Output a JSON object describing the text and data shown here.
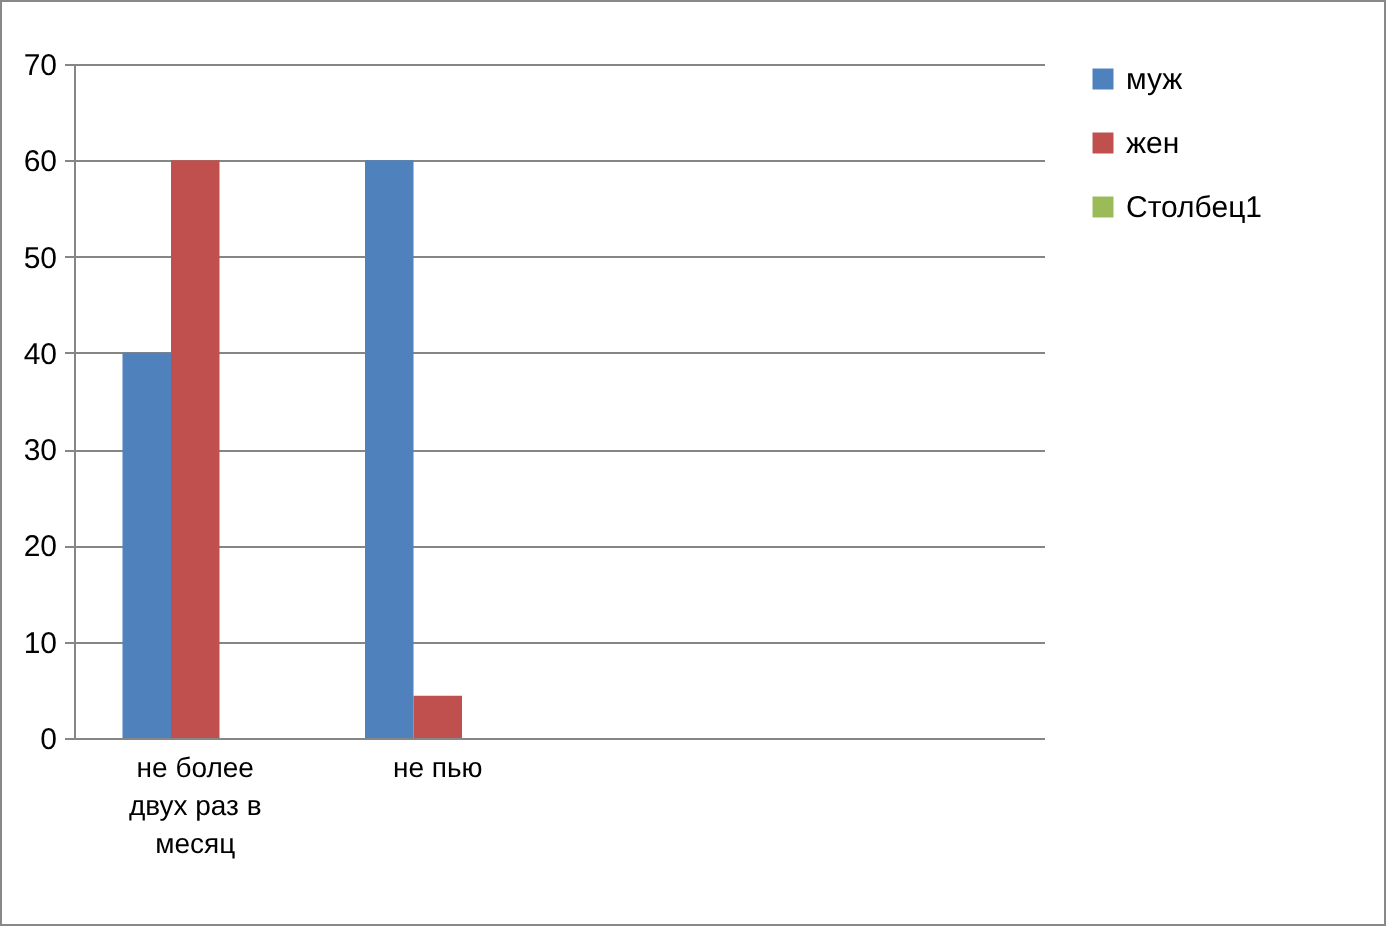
{
  "chart_data": {
    "type": "bar",
    "categories": [
      "не более двух раз в месяц",
      "не пью",
      null,
      null
    ],
    "series": [
      {
        "name": "муж",
        "color": "#4f81bd",
        "values": [
          40,
          60,
          null,
          null
        ]
      },
      {
        "name": "жен",
        "color": "#c0504d",
        "values": [
          60,
          4.4,
          null,
          null
        ]
      },
      {
        "name": "Столбец1",
        "color": "#9bbb59",
        "values": [
          null,
          null,
          null,
          null
        ]
      }
    ],
    "ylim": [
      0,
      70
    ],
    "yticks": [
      0,
      10,
      20,
      30,
      40,
      50,
      60,
      70
    ],
    "grid": "y",
    "legend": "right"
  }
}
